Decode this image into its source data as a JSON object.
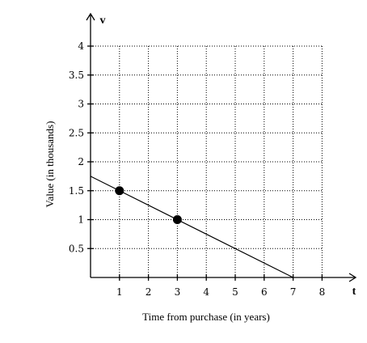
{
  "chart_data": {
    "type": "line",
    "title": "",
    "xlabel": "Time from purchase (in years)",
    "ylabel": "Value (in thousands)",
    "x_axis_variable": "t",
    "y_axis_variable": "v",
    "xlim": [
      0,
      8
    ],
    "ylim": [
      0,
      4
    ],
    "x_ticks": [
      1,
      2,
      3,
      4,
      5,
      6,
      7,
      8
    ],
    "x_tick_labels": [
      "1",
      "2",
      "3",
      "4",
      "5",
      "6",
      "7",
      "8"
    ],
    "y_ticks": [
      0.5,
      1,
      1.5,
      2,
      2.5,
      3,
      3.5,
      4
    ],
    "y_tick_labels": [
      "0.5",
      "1",
      "1.5",
      "2",
      "2.5",
      "3",
      "3.5",
      "4"
    ],
    "grid": true,
    "grid_style": "dotted",
    "line": {
      "x": [
        0,
        7
      ],
      "y": [
        1.75,
        0
      ]
    },
    "points": [
      {
        "x": 1,
        "y": 1.5
      },
      {
        "x": 3,
        "y": 1
      }
    ],
    "colors": {
      "line": "#000000",
      "grid": "#000000",
      "points": "#000000"
    }
  }
}
